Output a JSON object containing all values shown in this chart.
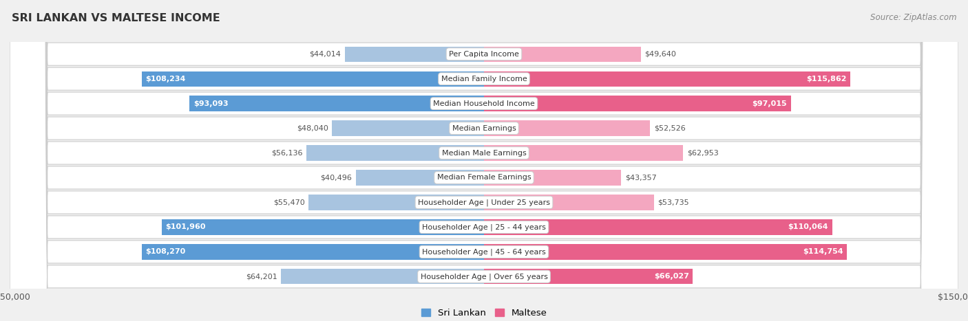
{
  "title": "SRI LANKAN VS MALTESE INCOME",
  "source": "Source: ZipAtlas.com",
  "categories": [
    "Per Capita Income",
    "Median Family Income",
    "Median Household Income",
    "Median Earnings",
    "Median Male Earnings",
    "Median Female Earnings",
    "Householder Age | Under 25 years",
    "Householder Age | 25 - 44 years",
    "Householder Age | 45 - 64 years",
    "Householder Age | Over 65 years"
  ],
  "sri_lankan": [
    44014,
    108234,
    93093,
    48040,
    56136,
    40496,
    55470,
    101960,
    108270,
    64201
  ],
  "maltese": [
    49640,
    115862,
    97015,
    52526,
    62953,
    43357,
    53735,
    110064,
    114754,
    66027
  ],
  "max_val": 150000,
  "sri_lankan_color_light": "#a8c4e0",
  "sri_lankan_color_dark": "#5b9bd5",
  "maltese_color_light": "#f4a7c0",
  "maltese_color_dark": "#e8608a",
  "label_inside_color": "#ffffff",
  "label_outside_color": "#555555",
  "bg_color": "#f0f0f0",
  "row_bg_even": "#e8e8e8",
  "row_bg_odd": "#f5f5f5",
  "bar_height": 0.62,
  "threshold": 65000
}
